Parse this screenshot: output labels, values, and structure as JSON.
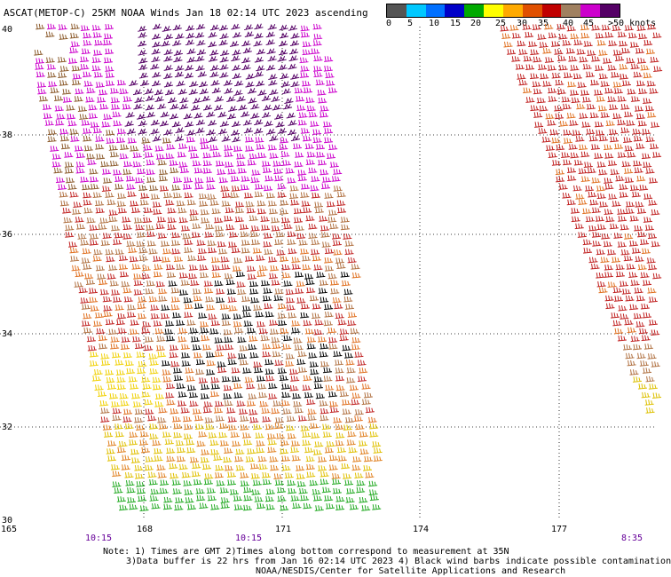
{
  "title": "ASCAT(METOP-C) 25KM NOAA Winds Jan 18 02:14 UTC 2023 ascending",
  "legend": {
    "labels": [
      "0",
      "5",
      "10",
      "15",
      "20",
      "25",
      "30",
      "35",
      "40",
      "45",
      ">50 knots"
    ],
    "colors": [
      "#555555",
      "#00c8ff",
      "#0070ff",
      "#0000c8",
      "#00aa00",
      "#ffff00",
      "#ffaa00",
      "#e05000",
      "#c00000",
      "#a08060",
      "#cc00cc",
      "#550066"
    ]
  },
  "axes": {
    "lon_labels": [
      "165",
      "168",
      "171",
      "174",
      "177"
    ],
    "lat_labels": [
      "40",
      "38",
      "36",
      "34",
      "32",
      "30"
    ]
  },
  "times": [
    "10:15",
    "10:15",
    "8:35"
  ],
  "notes": {
    "line1": "Note: 1) Times are GMT 2)Times along bottom correspond to measurement at 35N",
    "line2": "3)Data buffer is 22 hrs from Jan 16 02:14 UTC 2023 4) Black wind barbs indicate possible contamination",
    "line3": "NOAA/NESDIS/Center for Satellite Applications and Research"
  }
}
